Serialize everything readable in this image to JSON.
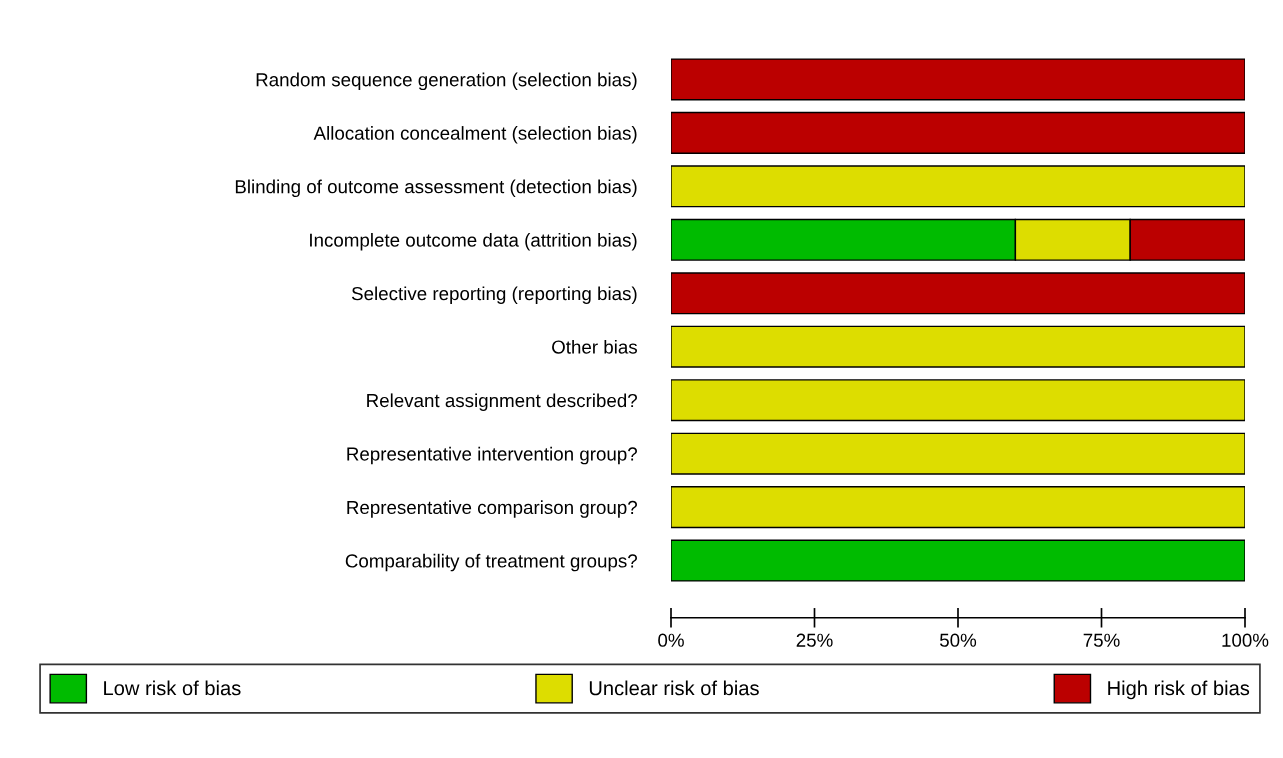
{
  "chart_data": {
    "type": "bar",
    "orientation": "horizontal",
    "stacked": true,
    "categories": [
      "Random sequence generation (selection bias)",
      "Allocation concealment (selection bias)",
      "Blinding of outcome assessment (detection bias)",
      "Incomplete outcome data (attrition bias)",
      "Selective reporting (reporting bias)",
      "Other bias",
      "Relevant assignment described?",
      "Representative intervention group?",
      "Representative comparison group?",
      "Comparability of treatment groups?"
    ],
    "series": [
      {
        "name": "Low risk of bias",
        "color": "#00bb00",
        "values": [
          0,
          0,
          0,
          60,
          0,
          0,
          0,
          0,
          0,
          100
        ]
      },
      {
        "name": "Unclear risk of bias",
        "color": "#dddd00",
        "values": [
          0,
          0,
          100,
          20,
          0,
          100,
          100,
          100,
          100,
          0
        ]
      },
      {
        "name": "High risk of bias",
        "color": "#bb0000",
        "values": [
          100,
          100,
          0,
          20,
          100,
          0,
          0,
          0,
          0,
          0
        ]
      }
    ],
    "xlim": [
      0,
      100
    ],
    "xticks": [
      {
        "value": 0,
        "label": "0%"
      },
      {
        "value": 25,
        "label": "25%"
      },
      {
        "value": 50,
        "label": "50%"
      },
      {
        "value": 75,
        "label": "75%"
      },
      {
        "value": 100,
        "label": "100%"
      }
    ],
    "grid": false,
    "legend": "bottom"
  }
}
